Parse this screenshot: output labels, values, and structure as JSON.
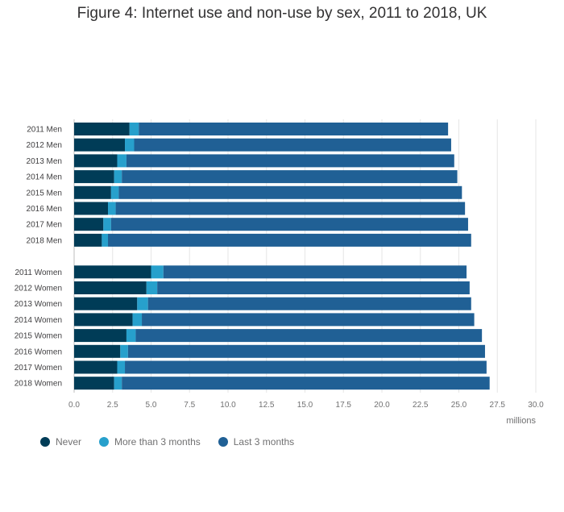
{
  "chart_data": {
    "type": "bar",
    "orientation": "horizontal",
    "stacked": true,
    "title": "Figure 4: Internet use and non-use by sex, 2011 to 2018, UK",
    "xlabel": "millions",
    "ylabel": "",
    "xlim": [
      0,
      30
    ],
    "xticks": [
      "0.0",
      "2.5",
      "5.0",
      "7.5",
      "10.0",
      "12.5",
      "15.0",
      "17.5",
      "20.0",
      "22.5",
      "25.0",
      "27.5",
      "30.0"
    ],
    "grid": true,
    "legend_position": "bottom-left",
    "categories": [
      "2011 Men",
      "2012 Men",
      "2013 Men",
      "2014 Men",
      "2015 Men",
      "2016 Men",
      "2017 Men",
      "2018 Men",
      "2011 Women",
      "2012 Women",
      "2013 Women",
      "2014 Women",
      "2015 Women",
      "2016 Women",
      "2017 Women",
      "2018 Women"
    ],
    "series": [
      {
        "name": "Never",
        "color": "#003c57",
        "values": [
          3.6,
          3.3,
          2.8,
          2.6,
          2.4,
          2.2,
          1.9,
          1.8,
          5.0,
          4.7,
          4.1,
          3.8,
          3.4,
          3.0,
          2.8,
          2.6
        ]
      },
      {
        "name": "More than 3 months",
        "color": "#27a0cc",
        "values": [
          0.6,
          0.6,
          0.6,
          0.5,
          0.5,
          0.5,
          0.5,
          0.4,
          0.8,
          0.7,
          0.7,
          0.6,
          0.6,
          0.5,
          0.5,
          0.5
        ]
      },
      {
        "name": "Last 3 months",
        "color": "#206095",
        "values": [
          20.1,
          20.6,
          21.3,
          21.8,
          22.3,
          22.7,
          23.2,
          23.6,
          19.7,
          20.3,
          21.0,
          21.6,
          22.5,
          23.2,
          23.5,
          23.9
        ]
      }
    ]
  }
}
